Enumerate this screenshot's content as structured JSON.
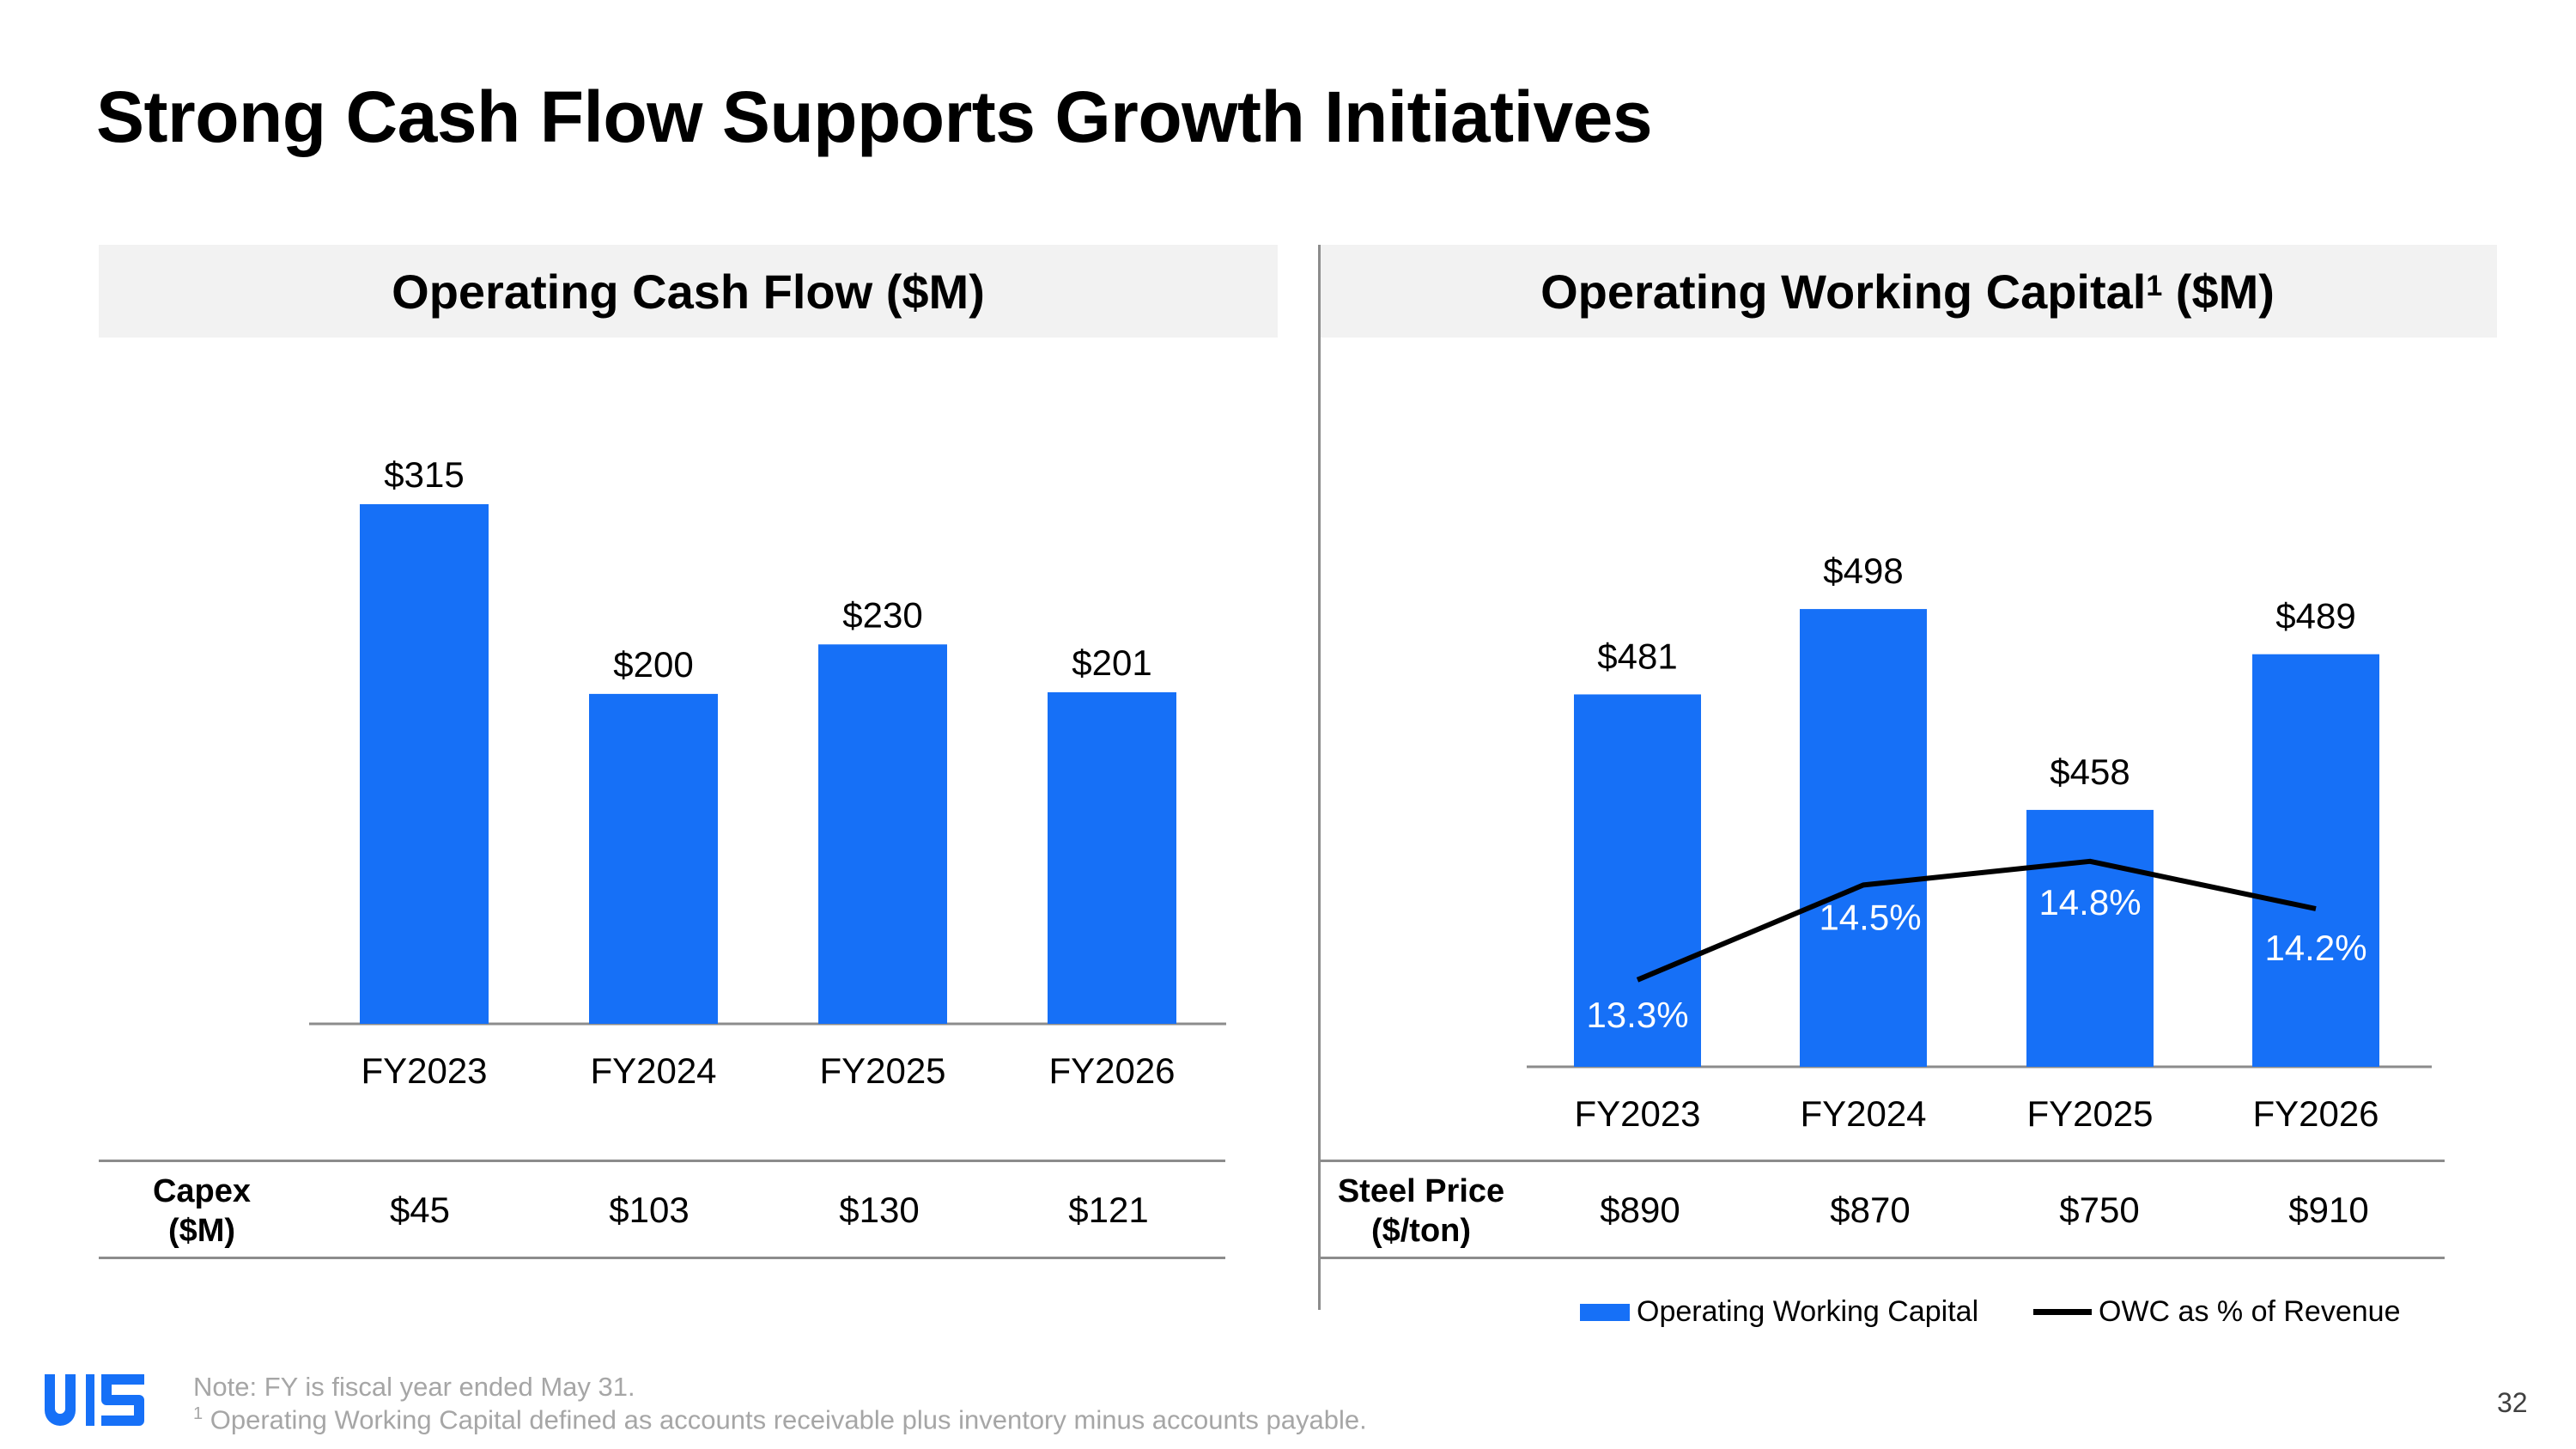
{
  "title": "Strong Cash Flow Supports Growth Initiatives",
  "colors": {
    "bar": "#1670f7",
    "line": "#000000",
    "panel_header_bg": "#f2f2f2"
  },
  "left_panel": {
    "header": "Operating Cash Flow ($M)",
    "table": {
      "row_label_1": "Capex",
      "row_label_2": "($M)",
      "values": [
        "$45",
        "$103",
        "$130",
        "$121"
      ]
    }
  },
  "right_panel": {
    "header_main": "Operating Working Capital",
    "header_sup": "1",
    "header_suffix": " ($M)",
    "table": {
      "row_label_1": "Steel Price",
      "row_label_2": "($/ton)",
      "values": [
        "$890",
        "$870",
        "$750",
        "$910"
      ]
    },
    "legend": {
      "bar_label": "Operating Working Capital",
      "line_label": "OWC as % of Revenue"
    }
  },
  "chart_data": [
    {
      "type": "bar",
      "title": "Operating Cash Flow ($M)",
      "categories": [
        "FY2023",
        "FY2024",
        "FY2025",
        "FY2026"
      ],
      "values": [
        315,
        200,
        230,
        201
      ],
      "data_labels": [
        "$315",
        "$200",
        "$230",
        "$201"
      ],
      "ylim": [
        0,
        340
      ],
      "grid": false
    },
    {
      "type": "bar",
      "title": "Operating Working Capital1 ($M)",
      "categories": [
        "FY2023",
        "FY2024",
        "FY2025",
        "FY2026"
      ],
      "series": [
        {
          "name": "Operating Working Capital",
          "type": "bar",
          "values": [
            481,
            498,
            458,
            489
          ],
          "data_labels": [
            "$481",
            "$498",
            "$458",
            "$489"
          ]
        },
        {
          "name": "OWC as % of Revenue",
          "type": "line",
          "values": [
            13.3,
            14.5,
            14.8,
            14.2
          ],
          "data_labels": [
            "13.3%",
            "14.5%",
            "14.8%",
            "14.2%"
          ]
        }
      ],
      "ylim": [
        400,
        530
      ],
      "secondary_ylim": [
        12.2,
        15.7
      ],
      "legend_position": "bottom",
      "grid": false
    }
  ],
  "footer": {
    "note": "Note: FY is fiscal year ended May 31.",
    "footnote_sup": "1",
    "footnote": " Operating Working Capital defined as accounts receivable plus inventory minus accounts payable.",
    "page_number": "32"
  }
}
